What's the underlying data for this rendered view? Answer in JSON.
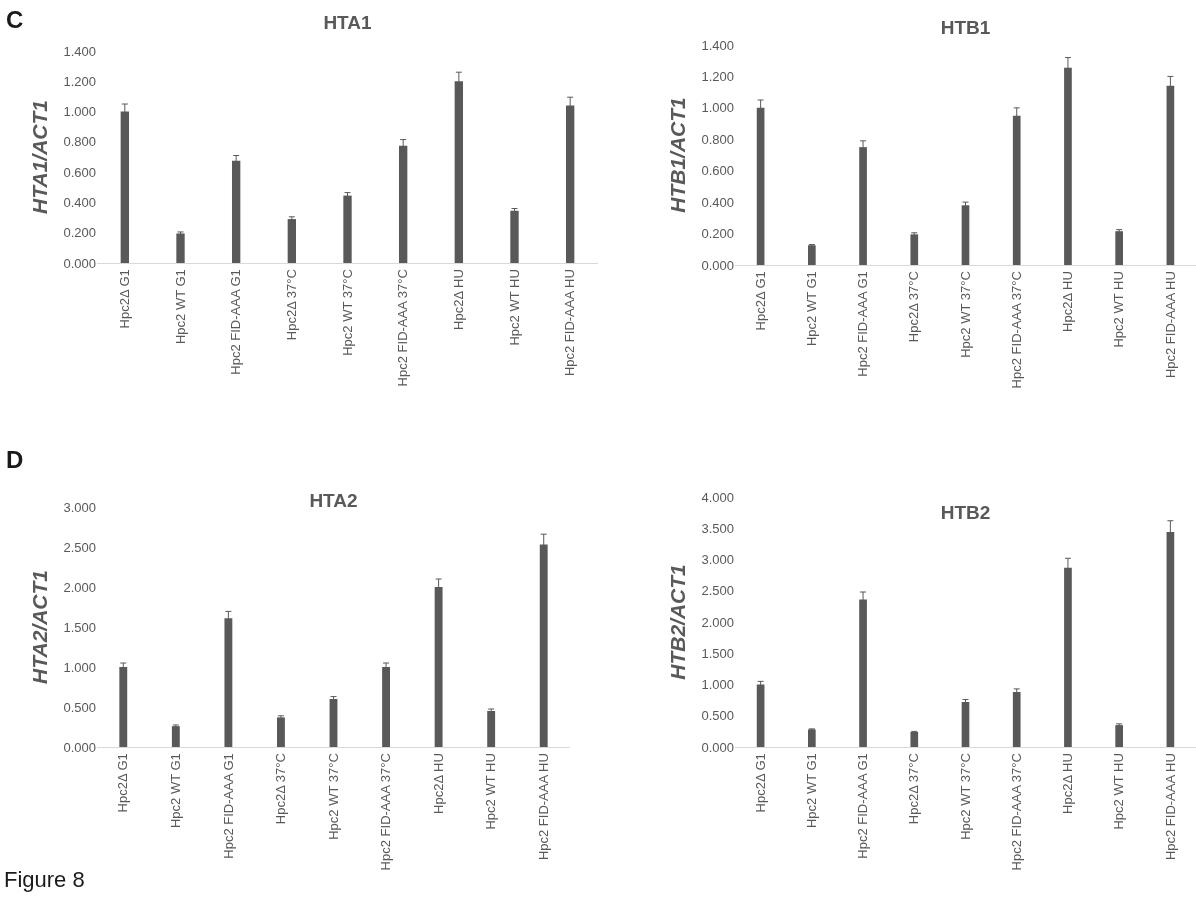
{
  "chart_data": [
    {
      "type": "bar",
      "title": "HTA1",
      "ylabel": "HTA1/ACT1",
      "annotations": [
        "C"
      ],
      "categories": [
        "Hpc2Δ G1",
        "Hpc2 WT G1",
        "Hpc2 FID-AAA G1",
        "Hpc2Δ 37°C",
        "Hpc2 WT 37°C",
        "Hpc2 FID-AAA 37°C",
        "Hpc2Δ HU",
        "Hpc2 WT HU",
        "Hpc2 FID-AAA HU"
      ],
      "color": "#595959",
      "values": [
        1.0,
        0.195,
        0.675,
        0.29,
        0.445,
        0.775,
        1.2,
        0.345,
        1.04
      ],
      "errors": [
        0.05,
        0.01,
        0.035,
        0.015,
        0.02,
        0.04,
        0.06,
        0.015,
        0.055
      ],
      "ylim": [
        0,
        1.4
      ],
      "yticks": [
        {
          "value": 0,
          "label": "0.000"
        },
        {
          "value": 0.2,
          "label": "0.200"
        },
        {
          "value": 0.4,
          "label": "0.400"
        },
        {
          "value": 0.6,
          "label": "0.600"
        },
        {
          "value": 0.8,
          "label": "0.800"
        },
        {
          "value": 1.0,
          "label": "1.000"
        },
        {
          "value": 1.2,
          "label": "1.200"
        },
        {
          "value": 1.4,
          "label": "1.400"
        }
      ],
      "grid": false
    },
    {
      "type": "bar",
      "title": "HTB1",
      "ylabel": "HTB1/ACT1",
      "categories": [
        "Hpc2Δ G1",
        "Hpc2 WT G1",
        "Hpc2 FID-AAA G1",
        "Hpc2Δ 37°C",
        "Hpc2 WT 37°C",
        "Hpc2 FID-AAA 37°C",
        "Hpc2Δ HU",
        "Hpc2 WT HU",
        "Hpc2 FID-AAA HU"
      ],
      "color": "#595959",
      "values": [
        1.0,
        0.125,
        0.75,
        0.195,
        0.38,
        0.95,
        1.255,
        0.215,
        1.14
      ],
      "errors": [
        0.05,
        0.005,
        0.04,
        0.01,
        0.02,
        0.05,
        0.065,
        0.01,
        0.06
      ],
      "ylim": [
        0,
        1.4
      ],
      "yticks": [
        {
          "value": 0,
          "label": "0.000"
        },
        {
          "value": 0.2,
          "label": "0.200"
        },
        {
          "value": 0.4,
          "label": "0.400"
        },
        {
          "value": 0.6,
          "label": "0.600"
        },
        {
          "value": 0.8,
          "label": "0.800"
        },
        {
          "value": 1.0,
          "label": "1.000"
        },
        {
          "value": 1.2,
          "label": "1.200"
        },
        {
          "value": 1.4,
          "label": "1.400"
        }
      ],
      "grid": false
    },
    {
      "type": "bar",
      "title": "HTA2",
      "ylabel": "HTA2/ACT1",
      "annotations": [
        "D",
        "Figure 8"
      ],
      "categories": [
        "Hpc2Δ G1",
        "Hpc2 WT G1",
        "Hpc2 FID-AAA G1",
        "Hpc2Δ 37°C",
        "Hpc2 WT 37°C",
        "Hpc2 FID-AAA 37°C",
        "Hpc2Δ HU",
        "Hpc2 WT HU",
        "Hpc2 FID-AAA HU"
      ],
      "color": "#595959",
      "values": [
        1.0,
        0.26,
        1.61,
        0.37,
        0.6,
        1.0,
        2.0,
        0.45,
        2.53
      ],
      "errors": [
        0.05,
        0.015,
        0.085,
        0.02,
        0.03,
        0.05,
        0.1,
        0.025,
        0.13
      ],
      "ylim": [
        0,
        3
      ],
      "yticks": [
        {
          "value": 0,
          "label": "0.000"
        },
        {
          "value": 0.5,
          "label": "0.500"
        },
        {
          "value": 1.0,
          "label": "1.000"
        },
        {
          "value": 1.5,
          "label": "1.500"
        },
        {
          "value": 2.0,
          "label": "2.000"
        },
        {
          "value": 2.5,
          "label": "2.500"
        },
        {
          "value": 3.0,
          "label": "3.000"
        }
      ],
      "grid": false
    },
    {
      "type": "bar",
      "title": "HTB2",
      "ylabel": "HTB2/ACT1",
      "categories": [
        "Hpc2Δ G1",
        "Hpc2 WT G1",
        "Hpc2 FID-AAA G1",
        "Hpc2Δ 37°C",
        "Hpc2 WT 37°C",
        "Hpc2 FID-AAA 37°C",
        "Hpc2Δ HU",
        "Hpc2 WT HU",
        "Hpc2 FID-AAA HU"
      ],
      "color": "#595959",
      "values": [
        1.0,
        0.28,
        2.36,
        0.24,
        0.72,
        0.88,
        2.87,
        0.35,
        3.44
      ],
      "errors": [
        0.05,
        0.01,
        0.12,
        0.01,
        0.04,
        0.05,
        0.15,
        0.02,
        0.18
      ],
      "ylim": [
        0,
        4
      ],
      "yticks": [
        {
          "value": 0,
          "label": "0.000"
        },
        {
          "value": 0.5,
          "label": "0.500"
        },
        {
          "value": 1.0,
          "label": "1.000"
        },
        {
          "value": 1.5,
          "label": "1.500"
        },
        {
          "value": 2.0,
          "label": "2.000"
        },
        {
          "value": 2.5,
          "label": "2.500"
        },
        {
          "value": 3.0,
          "label": "3.000"
        },
        {
          "value": 3.5,
          "label": "3.500"
        },
        {
          "value": 4.0,
          "label": "4.000"
        }
      ],
      "grid": false
    }
  ]
}
